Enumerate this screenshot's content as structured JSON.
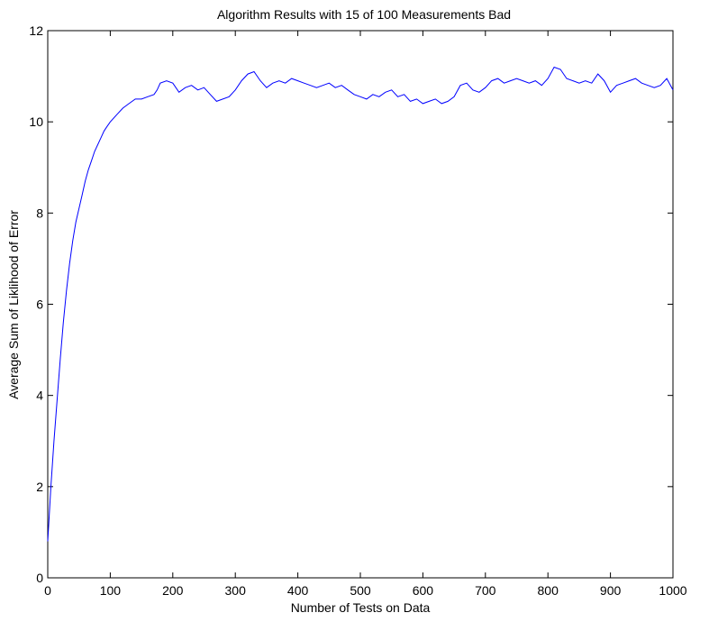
{
  "chart_data": {
    "type": "line",
    "title": "Algorithm Results with 15 of 100 Measurements Bad",
    "xlabel": "Number of Tests on Data",
    "ylabel": "Average Sum of Liklihood of Error",
    "xlim": [
      0,
      1000
    ],
    "ylim": [
      0,
      12
    ],
    "xticks": [
      0,
      100,
      200,
      300,
      400,
      500,
      600,
      700,
      800,
      900,
      1000
    ],
    "yticks": [
      0,
      2,
      4,
      6,
      8,
      10,
      12
    ],
    "grid": false,
    "line_color": "#0000ff",
    "series": [
      {
        "x": [
          0,
          5,
          10,
          15,
          20,
          25,
          30,
          35,
          40,
          45,
          50,
          55,
          60,
          65,
          70,
          75,
          80,
          85,
          90,
          95,
          100,
          110,
          120,
          130,
          140,
          150,
          160,
          170,
          175,
          180,
          190,
          200,
          210,
          220,
          230,
          240,
          250,
          260,
          270,
          280,
          290,
          300,
          310,
          320,
          330,
          340,
          350,
          360,
          370,
          380,
          390,
          400,
          410,
          420,
          430,
          440,
          450,
          460,
          470,
          480,
          490,
          500,
          510,
          520,
          530,
          540,
          550,
          560,
          570,
          580,
          590,
          600,
          610,
          620,
          630,
          640,
          650,
          660,
          670,
          680,
          690,
          700,
          710,
          720,
          730,
          740,
          750,
          760,
          770,
          780,
          790,
          800,
          810,
          820,
          830,
          840,
          850,
          860,
          870,
          880,
          890,
          900,
          910,
          920,
          930,
          940,
          950,
          960,
          970,
          980,
          990,
          1000
        ],
        "values": [
          0.8,
          2.0,
          3.0,
          3.9,
          4.8,
          5.6,
          6.3,
          6.9,
          7.4,
          7.8,
          8.1,
          8.4,
          8.7,
          8.95,
          9.15,
          9.35,
          9.5,
          9.65,
          9.8,
          9.9,
          10.0,
          10.15,
          10.3,
          10.4,
          10.5,
          10.5,
          10.55,
          10.6,
          10.7,
          10.85,
          10.9,
          10.85,
          10.65,
          10.75,
          10.8,
          10.7,
          10.75,
          10.6,
          10.45,
          10.5,
          10.55,
          10.7,
          10.9,
          11.05,
          11.1,
          10.9,
          10.75,
          10.85,
          10.9,
          10.85,
          10.95,
          10.9,
          10.85,
          10.8,
          10.75,
          10.8,
          10.85,
          10.75,
          10.8,
          10.7,
          10.6,
          10.55,
          10.5,
          10.6,
          10.55,
          10.65,
          10.7,
          10.55,
          10.6,
          10.45,
          10.5,
          10.4,
          10.45,
          10.5,
          10.4,
          10.45,
          10.55,
          10.8,
          10.85,
          10.7,
          10.65,
          10.75,
          10.9,
          10.95,
          10.85,
          10.9,
          10.95,
          10.9,
          10.85,
          10.9,
          10.8,
          10.95,
          11.2,
          11.15,
          10.95,
          10.9,
          10.85,
          10.9,
          10.85,
          11.05,
          10.9,
          10.65,
          10.8,
          10.85,
          10.9,
          10.95,
          10.85,
          10.8,
          10.75,
          10.8,
          10.95,
          10.7
        ]
      }
    ]
  }
}
